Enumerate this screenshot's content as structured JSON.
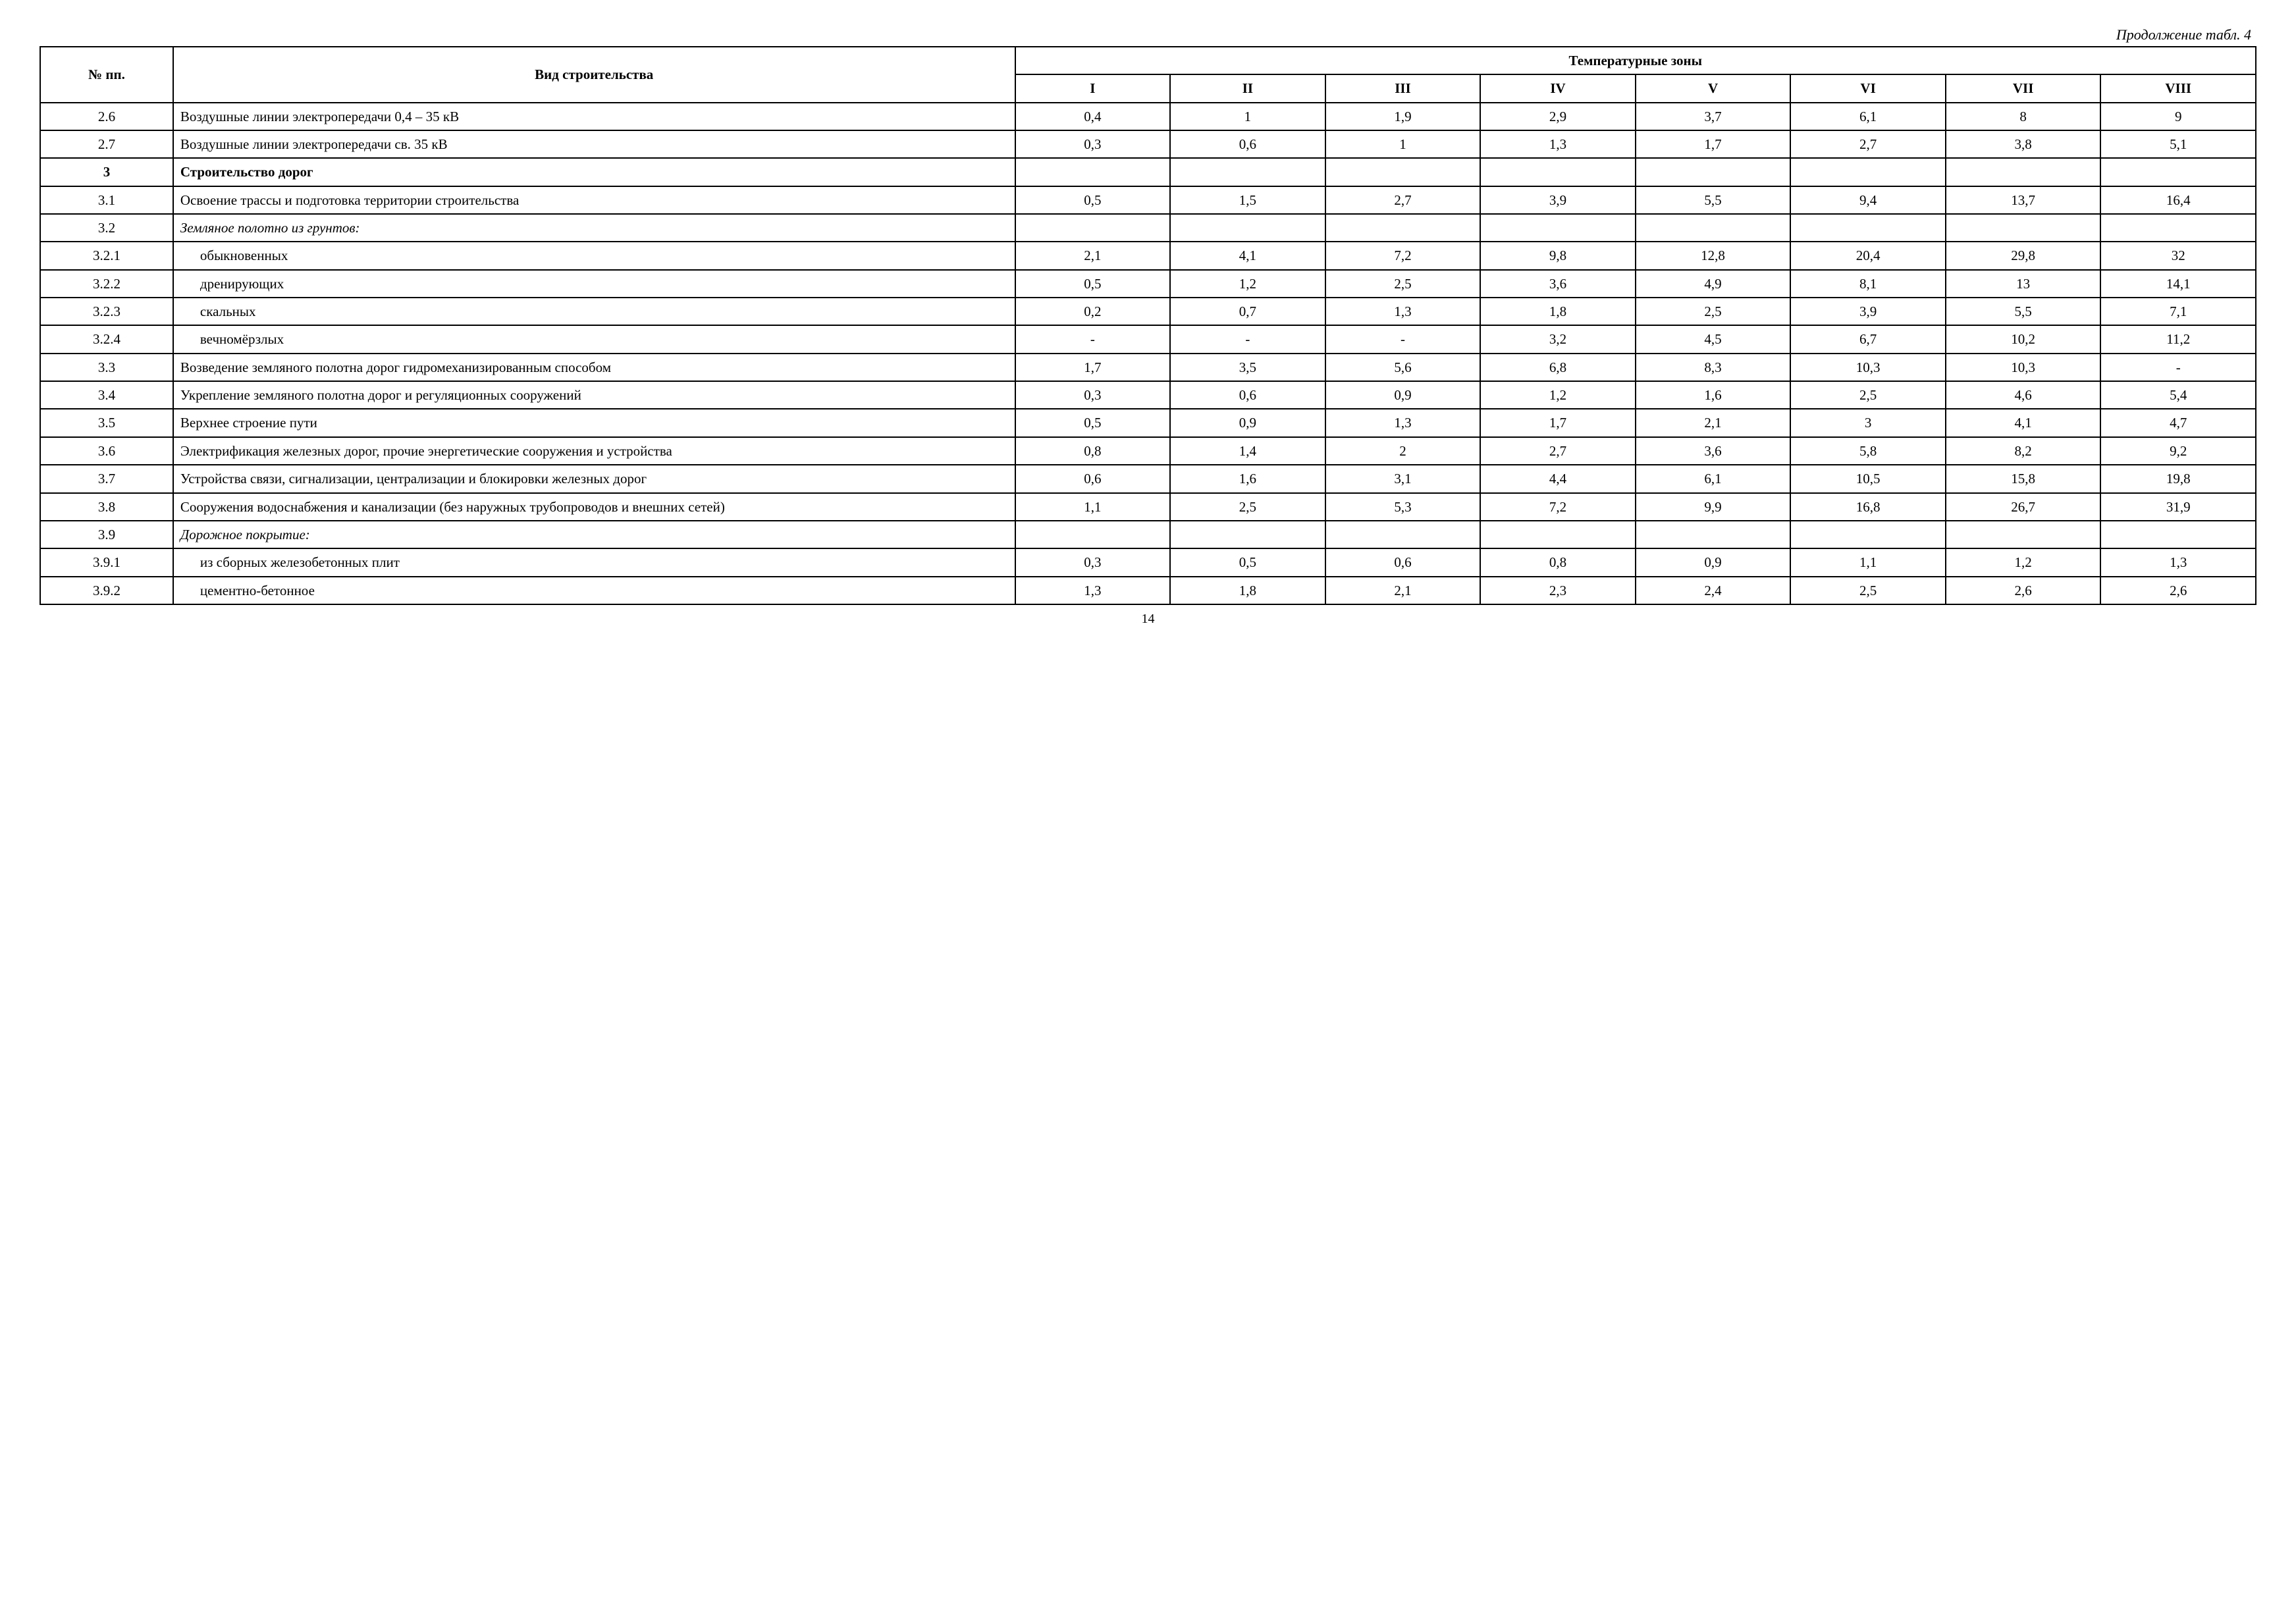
{
  "continuation": "Продолжение табл. 4",
  "header": {
    "col_num": "№ пп.",
    "col_desc": "Вид строительства",
    "zones_title": "Температурные зоны",
    "zones": [
      "I",
      "II",
      "III",
      "IV",
      "V",
      "VI",
      "VII",
      "VIII"
    ]
  },
  "rows": [
    {
      "num": "2.6",
      "desc": "Воздушные линии электропередачи 0,4 – 35 кВ",
      "v": [
        "0,4",
        "1",
        "1,9",
        "2,9",
        "3,7",
        "6,1",
        "8",
        "9"
      ]
    },
    {
      "num": "2.7",
      "desc": "Воздушные линии электропередачи св. 35 кВ",
      "v": [
        "0,3",
        "0,6",
        "1",
        "1,3",
        "1,7",
        "2,7",
        "3,8",
        "5,1"
      ]
    },
    {
      "num": "3",
      "desc": "Строительство дорог",
      "bold": true,
      "v": [
        "",
        "",
        "",
        "",
        "",
        "",
        "",
        ""
      ]
    },
    {
      "num": "3.1",
      "desc": "Освоение трассы и подготовка территории строительства",
      "justify": true,
      "v": [
        "0,5",
        "1,5",
        "2,7",
        "3,9",
        "5,5",
        "9,4",
        "13,7",
        "16,4"
      ]
    },
    {
      "num": "3.2",
      "desc": "Земляное полотно из грунтов:",
      "italic": true,
      "v": [
        "",
        "",
        "",
        "",
        "",
        "",
        "",
        ""
      ]
    },
    {
      "num": "3.2.1",
      "desc": "обыкновенных",
      "indent": true,
      "v": [
        "2,1",
        "4,1",
        "7,2",
        "9,8",
        "12,8",
        "20,4",
        "29,8",
        "32"
      ]
    },
    {
      "num": "3.2.2",
      "desc": "дренирующих",
      "indent": true,
      "v": [
        "0,5",
        "1,2",
        "2,5",
        "3,6",
        "4,9",
        "8,1",
        "13",
        "14,1"
      ]
    },
    {
      "num": "3.2.3",
      "desc": "скальных",
      "indent": true,
      "v": [
        "0,2",
        "0,7",
        "1,3",
        "1,8",
        "2,5",
        "3,9",
        "5,5",
        "7,1"
      ]
    },
    {
      "num": "3.2.4",
      "desc": "вечномёрзлых",
      "indent": true,
      "v": [
        "-",
        "-",
        "-",
        "3,2",
        "4,5",
        "6,7",
        "10,2",
        "11,2"
      ]
    },
    {
      "num": "3.3",
      "desc": "Возведение земляного полотна дорог гидромеханизированным способом",
      "justify": true,
      "v": [
        "1,7",
        "3,5",
        "5,6",
        "6,8",
        "8,3",
        "10,3",
        "10,3",
        "-"
      ]
    },
    {
      "num": "3.4",
      "desc": "Укрепление земляного полотна дорог и регуляционных сооружений",
      "justify": true,
      "v": [
        "0,3",
        "0,6",
        "0,9",
        "1,2",
        "1,6",
        "2,5",
        "4,6",
        "5,4"
      ]
    },
    {
      "num": "3.5",
      "desc": "Верхнее строение пути",
      "v": [
        "0,5",
        "0,9",
        "1,3",
        "1,7",
        "2,1",
        "3",
        "4,1",
        "4,7"
      ]
    },
    {
      "num": "3.6",
      "desc": "Электрификация железных дорог, прочие энергетические сооружения и устройства",
      "justify": true,
      "v": [
        "0,8",
        "1,4",
        "2",
        "2,7",
        "3,6",
        "5,8",
        "8,2",
        "9,2"
      ]
    },
    {
      "num": "3.7",
      "desc": "Устройства связи, сигнализации, централизации и блокировки железных дорог",
      "justify": true,
      "v": [
        "0,6",
        "1,6",
        "3,1",
        "4,4",
        "6,1",
        "10,5",
        "15,8",
        "19,8"
      ]
    },
    {
      "num": "3.8",
      "desc": "Сооружения водоснабжения и канализации (без наружных трубопроводов и внешних сетей)",
      "justify": true,
      "v": [
        "1,1",
        "2,5",
        "5,3",
        "7,2",
        "9,9",
        "16,8",
        "26,7",
        "31,9"
      ]
    },
    {
      "num": "3.9",
      "desc": "Дорожное покрытие:",
      "italic": true,
      "v": [
        "",
        "",
        "",
        "",
        "",
        "",
        "",
        ""
      ]
    },
    {
      "num": "3.9.1",
      "desc": "из сборных железобетонных плит",
      "indent": true,
      "v": [
        "0,3",
        "0,5",
        "0,6",
        "0,8",
        "0,9",
        "1,1",
        "1,2",
        "1,3"
      ]
    },
    {
      "num": "3.9.2",
      "desc": "цементно-бетонное",
      "indent": true,
      "v": [
        "1,3",
        "1,8",
        "2,1",
        "2,3",
        "2,4",
        "2,5",
        "2,6",
        "2,6"
      ]
    }
  ],
  "page_number": "14"
}
